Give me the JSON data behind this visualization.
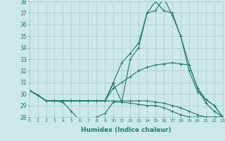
{
  "xlabel": "Humidex (Indice chaleur)",
  "background_color": "#cce8e8",
  "grid_color": "#aacccc",
  "line_color": "#1e7b6e",
  "x_min": 0,
  "x_max": 23,
  "y_min": 28,
  "y_max": 38,
  "lines": [
    {
      "x": [
        0,
        1,
        2,
        3,
        4,
        5,
        6,
        7,
        8,
        9,
        10,
        11,
        12,
        13,
        14,
        15,
        16,
        17,
        18,
        19,
        20,
        21,
        22,
        23
      ],
      "y": [
        30.3,
        29.9,
        29.4,
        29.4,
        29.3,
        28.5,
        27.7,
        27.8,
        28.0,
        28.3,
        29.3,
        29.3,
        29.2,
        29.1,
        29.0,
        29.0,
        28.8,
        28.5,
        28.2,
        28.0,
        28.0,
        28.0,
        28.0,
        28.0
      ]
    },
    {
      "x": [
        0,
        1,
        2,
        3,
        4,
        5,
        6,
        7,
        8,
        9,
        10,
        11,
        12,
        13,
        14,
        15,
        16,
        17,
        18,
        19,
        20,
        21,
        22,
        23
      ],
      "y": [
        30.3,
        29.9,
        29.4,
        29.4,
        29.4,
        29.4,
        29.4,
        29.4,
        29.4,
        29.4,
        29.4,
        29.4,
        29.4,
        29.4,
        29.4,
        29.3,
        29.2,
        29.0,
        28.8,
        28.5,
        28.2,
        28.0,
        28.0,
        28.0
      ]
    },
    {
      "x": [
        0,
        1,
        2,
        3,
        4,
        5,
        6,
        7,
        8,
        9,
        10,
        11,
        12,
        13,
        14,
        15,
        16,
        17,
        18,
        19,
        20,
        21,
        22,
        23
      ],
      "y": [
        30.3,
        29.9,
        29.4,
        29.4,
        29.4,
        29.4,
        29.4,
        29.4,
        29.4,
        29.4,
        30.5,
        31.0,
        31.5,
        32.0,
        32.3,
        32.5,
        32.6,
        32.7,
        32.6,
        32.5,
        30.5,
        29.5,
        29.0,
        28.0
      ]
    },
    {
      "x": [
        0,
        1,
        2,
        3,
        4,
        5,
        6,
        7,
        8,
        9,
        10,
        11,
        12,
        13,
        14,
        15,
        16,
        17,
        18,
        19,
        20,
        21,
        22,
        23
      ],
      "y": [
        30.3,
        29.9,
        29.4,
        29.4,
        29.4,
        29.4,
        29.4,
        29.4,
        29.4,
        29.4,
        31.0,
        32.7,
        33.5,
        34.4,
        37.0,
        37.2,
        38.3,
        36.8,
        35.0,
        32.5,
        30.5,
        29.2,
        28.5,
        28.0
      ]
    },
    {
      "x": [
        0,
        1,
        2,
        3,
        4,
        5,
        6,
        7,
        8,
        9,
        10,
        11,
        12,
        13,
        14,
        15,
        16,
        17,
        18,
        19,
        20,
        21,
        22,
        23
      ],
      "y": [
        30.3,
        29.9,
        29.4,
        29.4,
        29.4,
        29.4,
        29.4,
        29.4,
        29.4,
        29.4,
        30.9,
        29.3,
        33.0,
        34.0,
        37.0,
        38.0,
        37.2,
        37.0,
        35.0,
        32.0,
        30.2,
        29.5,
        29.0,
        28.0
      ]
    }
  ]
}
